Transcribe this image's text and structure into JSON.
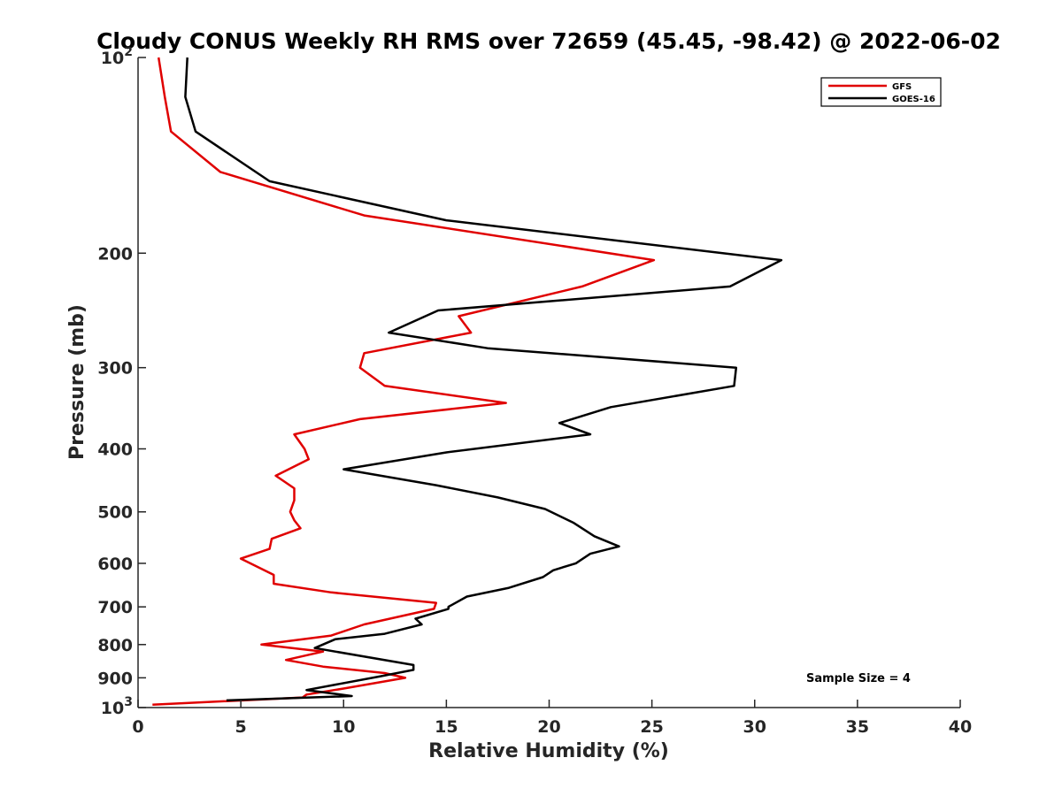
{
  "chart_data": {
    "type": "line",
    "title": "Cloudy CONUS Weekly RH RMS over 72659 (45.45, -98.42) @ 2022-06-02",
    "xlabel": "Relative Humidity (%)",
    "ylabel": "Pressure (mb)",
    "xlim": [
      0,
      40
    ],
    "ylim": [
      100,
      1000
    ],
    "y_scale": "log",
    "y_reversed": true,
    "grid": false,
    "legend_position": "top-right",
    "x_ticks": [
      "0",
      "5",
      "10",
      "15",
      "20",
      "25",
      "30",
      "35",
      "40"
    ],
    "y_ticks": [
      {
        "value": 100,
        "base": "10",
        "exp": "2"
      },
      {
        "value": 200,
        "label": "200"
      },
      {
        "value": 300,
        "label": "300"
      },
      {
        "value": 400,
        "label": "400"
      },
      {
        "value": 500,
        "label": "500"
      },
      {
        "value": 600,
        "label": "600"
      },
      {
        "value": 700,
        "label": "700"
      },
      {
        "value": 800,
        "label": "800"
      },
      {
        "value": 900,
        "label": "900"
      },
      {
        "value": 1000,
        "base": "10",
        "exp": "3"
      }
    ],
    "annotation": "Sample Size = 4",
    "series": [
      {
        "name": "GFS",
        "color": "#e00000",
        "points": [
          [
            1.0,
            100
          ],
          [
            1.3,
            115
          ],
          [
            1.6,
            130
          ],
          [
            4.0,
            150
          ],
          [
            11.0,
            175
          ],
          [
            25.1,
            205
          ],
          [
            21.6,
            225
          ],
          [
            15.6,
            250
          ],
          [
            16.2,
            265
          ],
          [
            11.0,
            285
          ],
          [
            10.8,
            300
          ],
          [
            12.0,
            320
          ],
          [
            17.9,
            340
          ],
          [
            10.8,
            360
          ],
          [
            7.6,
            380
          ],
          [
            8.1,
            400
          ],
          [
            8.3,
            415
          ],
          [
            6.7,
            440
          ],
          [
            7.6,
            460
          ],
          [
            7.6,
            480
          ],
          [
            7.4,
            500
          ],
          [
            7.6,
            515
          ],
          [
            7.9,
            530
          ],
          [
            6.5,
            550
          ],
          [
            6.4,
            570
          ],
          [
            5.0,
            590
          ],
          [
            6.6,
            625
          ],
          [
            6.6,
            645
          ],
          [
            9.4,
            665
          ],
          [
            14.5,
            690
          ],
          [
            14.4,
            705
          ],
          [
            11.0,
            745
          ],
          [
            9.4,
            775
          ],
          [
            6.0,
            800
          ],
          [
            9.0,
            820
          ],
          [
            7.2,
            845
          ],
          [
            9.0,
            865
          ],
          [
            12.0,
            885
          ],
          [
            13.0,
            900
          ],
          [
            10.0,
            935
          ],
          [
            8.2,
            955
          ],
          [
            8.0,
            965
          ],
          [
            0.7,
            990
          ]
        ]
      },
      {
        "name": "GOES-16",
        "color": "#000000",
        "points": [
          [
            2.4,
            100
          ],
          [
            2.3,
            115
          ],
          [
            2.8,
            130
          ],
          [
            6.4,
            155
          ],
          [
            15.0,
            178
          ],
          [
            31.3,
            205
          ],
          [
            28.8,
            225
          ],
          [
            14.6,
            245
          ],
          [
            12.2,
            265
          ],
          [
            17.0,
            280
          ],
          [
            29.1,
            300
          ],
          [
            29.0,
            320
          ],
          [
            23.0,
            345
          ],
          [
            20.5,
            365
          ],
          [
            22.0,
            380
          ],
          [
            15.0,
            405
          ],
          [
            10.0,
            430
          ],
          [
            14.5,
            455
          ],
          [
            17.5,
            475
          ],
          [
            19.8,
            495
          ],
          [
            21.2,
            520
          ],
          [
            22.2,
            545
          ],
          [
            23.4,
            565
          ],
          [
            22.0,
            580
          ],
          [
            21.3,
            600
          ],
          [
            20.2,
            615
          ],
          [
            19.7,
            630
          ],
          [
            18.0,
            655
          ],
          [
            16.0,
            675
          ],
          [
            15.1,
            700
          ],
          [
            15.1,
            705
          ],
          [
            13.5,
            730
          ],
          [
            13.8,
            745
          ],
          [
            12.0,
            770
          ],
          [
            9.6,
            785
          ],
          [
            8.6,
            810
          ],
          [
            13.4,
            860
          ],
          [
            13.4,
            875
          ],
          [
            11.8,
            895
          ],
          [
            8.2,
            940
          ],
          [
            9.3,
            950
          ],
          [
            10.4,
            960
          ],
          [
            4.3,
            975
          ]
        ]
      }
    ]
  }
}
